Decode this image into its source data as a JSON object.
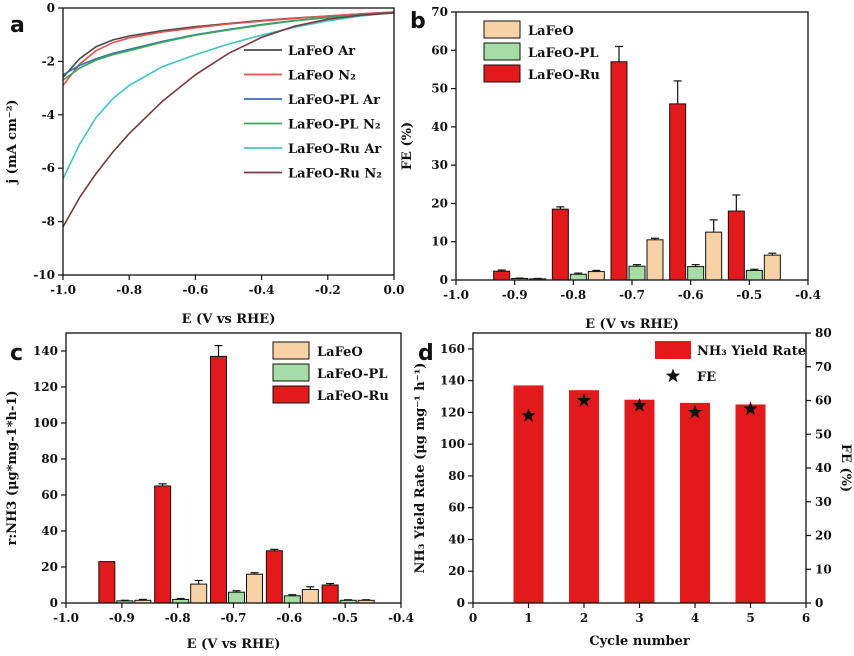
{
  "colors": {
    "LaFeO": "#f7d2a7",
    "LaFeO-PL": "#a6dca6",
    "LaFeO-Ru": "#e31a1c",
    "LaFeO Ar": "#4a4a4a",
    "LaFeO N2": "#e8504a",
    "LaFeO-PL Ar": "#3b6db5",
    "LaFeO-PL N2": "#3aa85a",
    "LaFeO-Ru Ar": "#3fc4c4",
    "LaFeO-Ru N2": "#7a3b3b"
  },
  "chart_data": [
    {
      "panel": "a",
      "type": "line",
      "xlabel": "E (V vs RHE)",
      "ylabel": "j (mA cm⁻²)",
      "xlim": [
        -1.0,
        0.0
      ],
      "ylim": [
        -10,
        0
      ],
      "xticks": [
        "-1.0",
        "-0.8",
        "-0.6",
        "-0.4",
        "-0.2",
        "0.0"
      ],
      "yticks": [
        "0",
        "-2",
        "-4",
        "-6",
        "-8",
        "-10"
      ],
      "series": [
        {
          "name": "LaFeO Ar",
          "x": [
            -1.0,
            -0.95,
            -0.9,
            -0.85,
            -0.8,
            -0.7,
            -0.6,
            -0.5,
            -0.4,
            -0.3,
            -0.2,
            -0.1,
            0.0
          ],
          "y": [
            -2.6,
            -1.9,
            -1.45,
            -1.2,
            -1.05,
            -0.85,
            -0.7,
            -0.58,
            -0.47,
            -0.38,
            -0.3,
            -0.22,
            -0.15
          ]
        },
        {
          "name": "LaFeO N2",
          "x": [
            -1.0,
            -0.95,
            -0.9,
            -0.85,
            -0.8,
            -0.7,
            -0.6,
            -0.5,
            -0.4,
            -0.3,
            -0.2,
            -0.1,
            0.0
          ],
          "y": [
            -2.9,
            -2.1,
            -1.6,
            -1.3,
            -1.12,
            -0.9,
            -0.74,
            -0.6,
            -0.49,
            -0.39,
            -0.3,
            -0.22,
            -0.15
          ]
        },
        {
          "name": "LaFeO-PL Ar",
          "x": [
            -1.0,
            -0.95,
            -0.9,
            -0.85,
            -0.8,
            -0.7,
            -0.6,
            -0.5,
            -0.4,
            -0.3,
            -0.2,
            -0.1,
            0.0
          ],
          "y": [
            -2.5,
            -2.15,
            -1.9,
            -1.7,
            -1.55,
            -1.25,
            -1.0,
            -0.8,
            -0.62,
            -0.47,
            -0.35,
            -0.25,
            -0.17
          ]
        },
        {
          "name": "LaFeO-PL N2",
          "x": [
            -1.0,
            -0.95,
            -0.9,
            -0.85,
            -0.8,
            -0.7,
            -0.6,
            -0.5,
            -0.4,
            -0.3,
            -0.2,
            -0.1,
            0.0
          ],
          "y": [
            -2.7,
            -2.25,
            -1.95,
            -1.75,
            -1.6,
            -1.28,
            -1.02,
            -0.82,
            -0.64,
            -0.48,
            -0.36,
            -0.26,
            -0.18
          ]
        },
        {
          "name": "LaFeO-Ru Ar",
          "x": [
            -1.0,
            -0.95,
            -0.9,
            -0.85,
            -0.8,
            -0.7,
            -0.6,
            -0.5,
            -0.4,
            -0.3,
            -0.2,
            -0.1,
            0.0
          ],
          "y": [
            -6.4,
            -5.1,
            -4.1,
            -3.4,
            -2.9,
            -2.2,
            -1.75,
            -1.35,
            -1.02,
            -0.72,
            -0.48,
            -0.3,
            -0.18
          ]
        },
        {
          "name": "LaFeO-Ru N2",
          "x": [
            -1.0,
            -0.95,
            -0.9,
            -0.85,
            -0.8,
            -0.7,
            -0.6,
            -0.5,
            -0.4,
            -0.3,
            -0.2,
            -0.1,
            0.0
          ],
          "y": [
            -8.2,
            -7.1,
            -6.2,
            -5.4,
            -4.7,
            -3.5,
            -2.5,
            -1.7,
            -1.1,
            -0.68,
            -0.42,
            -0.27,
            -0.18
          ]
        }
      ],
      "legend": "right",
      "legend_labels": [
        "LaFeO Ar",
        "LaFeO N₂",
        "LaFeO-PL Ar",
        "LaFeO-PL N₂",
        "LaFeO-Ru Ar",
        "LaFeO-Ru N₂"
      ]
    },
    {
      "panel": "b",
      "type": "bar",
      "xlabel": "E (V vs RHE)",
      "ylabel": "FE (%)",
      "xlim": [
        -1.0,
        -0.4
      ],
      "ylim": [
        0,
        70
      ],
      "xticks": [
        "-1.0",
        "-0.9",
        "-0.8",
        "-0.7",
        "-0.6",
        "-0.5",
        "-0.4"
      ],
      "yticks": [
        "0",
        "10",
        "20",
        "30",
        "40",
        "50",
        "60",
        "70"
      ],
      "positions": [
        -0.9,
        -0.8,
        -0.7,
        -0.6,
        -0.5
      ],
      "series": [
        {
          "name": "LaFeO-Ru",
          "values": [
            2.3,
            18.5,
            57,
            46,
            18
          ],
          "errors": [
            0.3,
            0.6,
            4,
            6,
            4.2
          ]
        },
        {
          "name": "LaFeO-PL",
          "values": [
            0.4,
            1.5,
            3.6,
            3.5,
            2.5
          ],
          "errors": [
            0.1,
            0.3,
            0.4,
            0.5,
            0.3
          ]
        },
        {
          "name": "LaFeO",
          "values": [
            0.3,
            2.2,
            10.5,
            12.5,
            6.5
          ],
          "errors": [
            0.1,
            0.3,
            0.4,
            3.2,
            0.5
          ]
        }
      ],
      "legend": "top-left",
      "legend_order": [
        "LaFeO",
        "LaFeO-PL",
        "LaFeO-Ru"
      ]
    },
    {
      "panel": "c",
      "type": "bar",
      "xlabel": "E (V vs RHE)",
      "ylabel": "r:NH3 (μg*mg-1*h-1)",
      "xlim": [
        -1.0,
        -0.4
      ],
      "ylim": [
        0,
        150
      ],
      "xticks": [
        "-1.0",
        "-0.9",
        "-0.8",
        "-0.7",
        "-0.6",
        "-0.5",
        "-0.4"
      ],
      "yticks": [
        "0",
        "20",
        "40",
        "60",
        "80",
        "100",
        "120",
        "140"
      ],
      "positions": [
        -0.9,
        -0.8,
        -0.7,
        -0.6,
        -0.5
      ],
      "series": [
        {
          "name": "LaFeO-Ru",
          "values": [
            23,
            65,
            137,
            29,
            10
          ],
          "errors": [
            0,
            1.2,
            6,
            0.8,
            0.8
          ]
        },
        {
          "name": "LaFeO-PL",
          "values": [
            1.2,
            2.0,
            6.0,
            4.0,
            1.5
          ],
          "errors": [
            0.3,
            0.5,
            0.8,
            0.6,
            0.3
          ]
        },
        {
          "name": "LaFeO",
          "values": [
            1.5,
            10.5,
            16,
            7.5,
            1.5
          ],
          "errors": [
            0.5,
            2,
            0.8,
            1.5,
            0.3
          ]
        }
      ],
      "legend": "top-right",
      "legend_order": [
        "LaFeO",
        "LaFeO-PL",
        "LaFeO-Ru"
      ]
    },
    {
      "panel": "d",
      "type": "bar",
      "xlabel": "Cycle number",
      "ylabel": "NH₃ Yield Rate (μg mg⁻¹ h⁻¹)",
      "y2label": "FE (%)",
      "xlim": [
        0,
        6
      ],
      "ylim": [
        0,
        170
      ],
      "y2lim": [
        0,
        80
      ],
      "xticks": [
        "0",
        "1",
        "2",
        "3",
        "4",
        "5",
        "6"
      ],
      "yticks": [
        "0",
        "20",
        "40",
        "60",
        "80",
        "100",
        "120",
        "140",
        "160"
      ],
      "y2ticks": [
        "0",
        "10",
        "20",
        "30",
        "40",
        "50",
        "60",
        "70",
        "80"
      ],
      "categories": [
        1,
        2,
        3,
        4,
        5
      ],
      "series": [
        {
          "name": "NH₃ Yield Rate",
          "values": [
            137,
            134,
            128,
            126,
            125
          ]
        },
        {
          "name": "FE",
          "values": [
            55.5,
            60,
            58.5,
            56.5,
            57.5
          ],
          "axis": "right"
        }
      ],
      "legend": "top-right"
    }
  ]
}
